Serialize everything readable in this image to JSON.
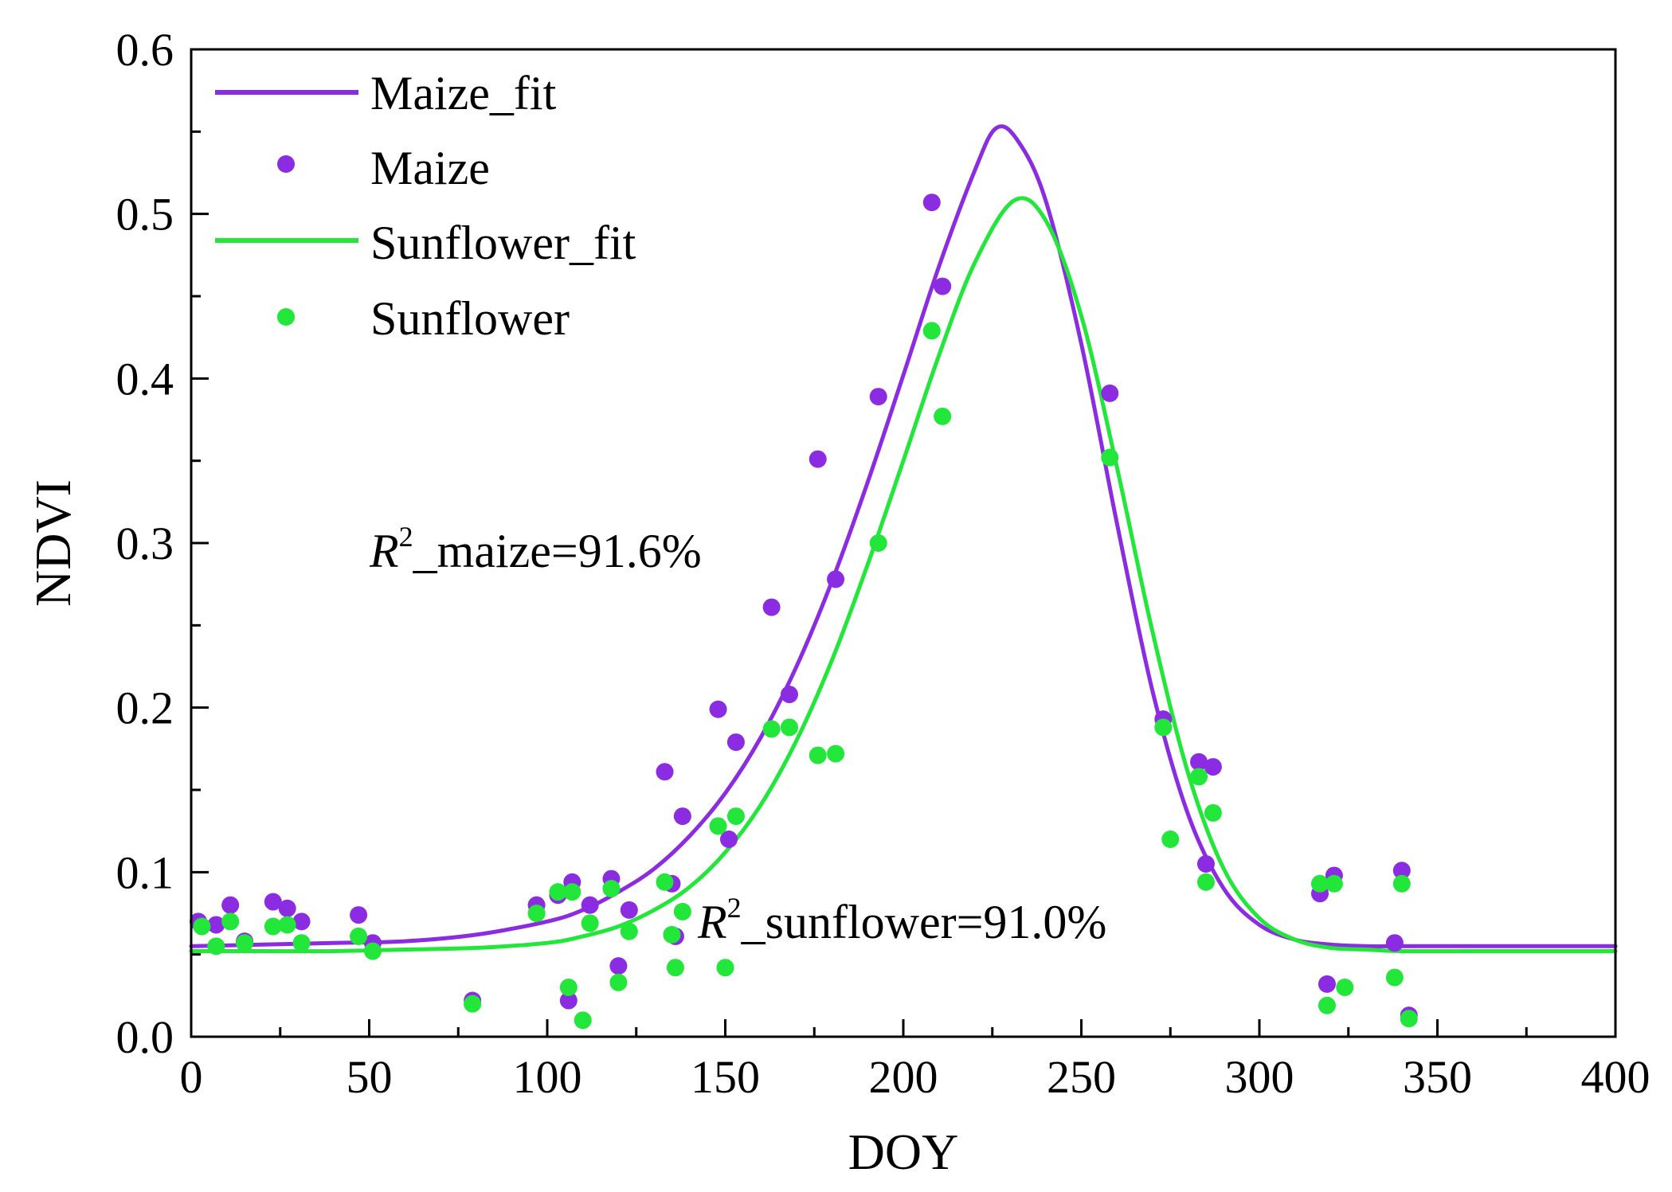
{
  "chart_data": {
    "type": "scatter",
    "title": "",
    "xlabel": "DOY",
    "ylabel": "NDVI",
    "xlim": [
      0,
      400
    ],
    "ylim": [
      0.0,
      0.6
    ],
    "x_ticks": [
      "0",
      "50",
      "100",
      "150",
      "200",
      "250",
      "300",
      "350",
      "400"
    ],
    "y_ticks": [
      "0.0",
      "0.1",
      "0.2",
      "0.3",
      "0.4",
      "0.5",
      "0.6"
    ],
    "grid": false,
    "legend_position": "top-left",
    "colors": {
      "maize": "#8b2be2",
      "sunflower": "#22e63a"
    },
    "series": [
      {
        "name": "Maize_fit",
        "kind": "line",
        "color": "#8b2be2",
        "x": [
          0,
          20,
          40,
          60,
          80,
          100,
          110,
          120,
          130,
          140,
          150,
          160,
          170,
          180,
          190,
          200,
          210,
          220,
          226,
          232,
          240,
          250,
          260,
          270,
          280,
          290,
          300,
          310,
          320,
          330,
          340,
          360,
          380,
          400
        ],
        "y": [
          0.055,
          0.056,
          0.057,
          0.058,
          0.062,
          0.07,
          0.077,
          0.088,
          0.102,
          0.122,
          0.148,
          0.182,
          0.225,
          0.277,
          0.337,
          0.402,
          0.468,
          0.526,
          0.552,
          0.545,
          0.508,
          0.421,
          0.312,
          0.21,
          0.135,
          0.09,
          0.068,
          0.059,
          0.056,
          0.055,
          0.055,
          0.055,
          0.055,
          0.055
        ]
      },
      {
        "name": "Maize",
        "kind": "points",
        "color": "#8b2be2",
        "x": [
          2,
          7,
          11,
          15,
          23,
          27,
          31,
          47,
          51,
          79,
          97,
          103,
          106,
          107,
          112,
          118,
          120,
          123,
          133,
          135,
          136,
          138,
          148,
          151,
          153,
          163,
          168,
          176,
          181,
          193,
          208,
          211,
          258,
          273,
          283,
          285,
          287,
          317,
          319,
          321,
          338,
          340,
          342
        ],
        "y": [
          0.07,
          0.068,
          0.08,
          0.058,
          0.082,
          0.078,
          0.07,
          0.074,
          0.057,
          0.022,
          0.08,
          0.086,
          0.022,
          0.094,
          0.08,
          0.096,
          0.043,
          0.077,
          0.161,
          0.093,
          0.061,
          0.134,
          0.199,
          0.12,
          0.179,
          0.261,
          0.208,
          0.351,
          0.278,
          0.389,
          0.507,
          0.456,
          0.391,
          0.193,
          0.167,
          0.105,
          0.164,
          0.087,
          0.032,
          0.098,
          0.057,
          0.101,
          0.013
        ]
      },
      {
        "name": "Sunflower_fit",
        "kind": "line",
        "color": "#22e63a",
        "x": [
          0,
          20,
          40,
          60,
          80,
          100,
          110,
          120,
          130,
          140,
          150,
          160,
          170,
          180,
          190,
          200,
          210,
          220,
          231,
          240,
          250,
          260,
          270,
          280,
          290,
          300,
          310,
          320,
          330,
          340,
          360,
          380,
          400
        ],
        "y": [
          0.052,
          0.052,
          0.052,
          0.053,
          0.054,
          0.057,
          0.061,
          0.067,
          0.077,
          0.091,
          0.112,
          0.141,
          0.18,
          0.229,
          0.287,
          0.35,
          0.414,
          0.47,
          0.508,
          0.496,
          0.438,
          0.346,
          0.246,
          0.16,
          0.102,
          0.072,
          0.059,
          0.054,
          0.053,
          0.052,
          0.052,
          0.052,
          0.052
        ]
      },
      {
        "name": "Sunflower",
        "kind": "points",
        "color": "#22e63a",
        "x": [
          3,
          7,
          11,
          15,
          23,
          27,
          31,
          47,
          51,
          79,
          97,
          103,
          106,
          107,
          110,
          112,
          118,
          120,
          123,
          133,
          135,
          136,
          138,
          148,
          150,
          153,
          163,
          168,
          176,
          181,
          193,
          208,
          211,
          258,
          273,
          275,
          283,
          285,
          287,
          317,
          319,
          321,
          324,
          338,
          340,
          342
        ],
        "y": [
          0.067,
          0.055,
          0.07,
          0.057,
          0.067,
          0.068,
          0.057,
          0.061,
          0.052,
          0.02,
          0.075,
          0.088,
          0.03,
          0.088,
          0.01,
          0.069,
          0.09,
          0.033,
          0.064,
          0.094,
          0.062,
          0.042,
          0.076,
          0.128,
          0.042,
          0.134,
          0.187,
          0.188,
          0.171,
          0.172,
          0.3,
          0.429,
          0.377,
          0.352,
          0.188,
          0.12,
          0.158,
          0.094,
          0.136,
          0.093,
          0.019,
          0.093,
          0.03,
          0.036,
          0.093,
          0.011
        ]
      }
    ],
    "legend": [
      "Maize_fit",
      "Maize",
      "Sunflower_fit",
      "Sunflower"
    ],
    "annotations": [
      {
        "r_symbol": "R",
        "power": "2",
        "text": "_maize=91.6%"
      },
      {
        "r_symbol": "R",
        "power": "2",
        "text": "_sunflower=91.0%"
      }
    ]
  }
}
